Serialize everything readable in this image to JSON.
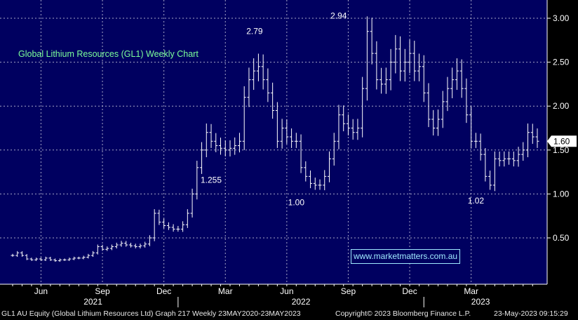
{
  "chart_data": {
    "type": "ohlc",
    "title": "Global Lithium Resources (GL1) Weekly Chart",
    "watermark": "www.marketmatters.com.au",
    "yticks": [
      "3.00",
      "2.50",
      "2.00",
      "1.50",
      "1.00",
      "0.50"
    ],
    "ytick_values": [
      3.0,
      2.5,
      2.0,
      1.5,
      1.0,
      0.5
    ],
    "ylim": [
      0.0,
      3.2
    ],
    "last_price": "1.60",
    "last_value": 1.6,
    "month_labels": [
      {
        "label": "Jun",
        "week": 6
      },
      {
        "label": "Sep",
        "week": 19
      },
      {
        "label": "Dec",
        "week": 32
      },
      {
        "label": "Mar",
        "week": 45
      },
      {
        "label": "Jun",
        "week": 58
      },
      {
        "label": "Sep",
        "week": 71
      },
      {
        "label": "Dec",
        "week": 84
      },
      {
        "label": "Mar",
        "week": 97
      }
    ],
    "year_labels": [
      {
        "label": "2021",
        "week": 17
      },
      {
        "label": "2022",
        "week": 61
      },
      {
        "label": "2023",
        "week": 99
      }
    ],
    "year_dividers": [
      35,
      87
    ],
    "annotations": [
      {
        "text": "2.79",
        "week": 49,
        "value": 2.79,
        "position": "above-right"
      },
      {
        "text": "1.255",
        "week": 42,
        "value": 1.255,
        "position": "below"
      },
      {
        "text": "1.00",
        "week": 60,
        "value": 1.0,
        "position": "below"
      },
      {
        "text": "2.94",
        "week": 71,
        "value": 2.94,
        "position": "above-left"
      },
      {
        "text": "1.02",
        "week": 98,
        "value": 1.02,
        "position": "below"
      }
    ],
    "weekly_close": [
      0.3,
      0.33,
      0.3,
      0.26,
      0.25,
      0.26,
      0.25,
      0.27,
      0.25,
      0.24,
      0.25,
      0.25,
      0.26,
      0.27,
      0.27,
      0.28,
      0.3,
      0.33,
      0.4,
      0.37,
      0.38,
      0.4,
      0.42,
      0.44,
      0.42,
      0.41,
      0.4,
      0.41,
      0.43,
      0.5,
      0.78,
      0.68,
      0.64,
      0.62,
      0.6,
      0.6,
      0.65,
      0.78,
      1.0,
      1.3,
      1.5,
      1.7,
      1.6,
      1.55,
      1.52,
      1.5,
      1.52,
      1.55,
      1.6,
      2.1,
      2.3,
      2.4,
      2.45,
      2.3,
      2.15,
      1.95,
      1.6,
      1.75,
      1.65,
      1.6,
      1.6,
      1.3,
      1.2,
      1.12,
      1.1,
      1.1,
      1.2,
      1.4,
      1.6,
      1.9,
      1.8,
      1.75,
      1.7,
      1.75,
      2.2,
      2.85,
      2.6,
      2.3,
      2.25,
      2.3,
      2.5,
      2.65,
      2.4,
      2.5,
      2.6,
      2.4,
      2.45,
      2.15,
      1.85,
      1.75,
      1.85,
      2.05,
      2.2,
      2.3,
      2.4,
      2.2,
      1.9,
      1.6,
      1.6,
      1.45,
      1.2,
      1.1,
      1.4,
      1.38,
      1.4,
      1.4,
      1.38,
      1.45,
      1.5,
      1.7,
      1.65,
      1.6
    ]
  },
  "footer": {
    "left": "GL1 AU Equity (Global Lithium Resources Ltd) Graph 217  Weekly 23MAY2020-23MAY2023",
    "center": "Copyright© 2023 Bloomberg Finance L.P.",
    "right": "23-May-2023 09:15:29"
  }
}
